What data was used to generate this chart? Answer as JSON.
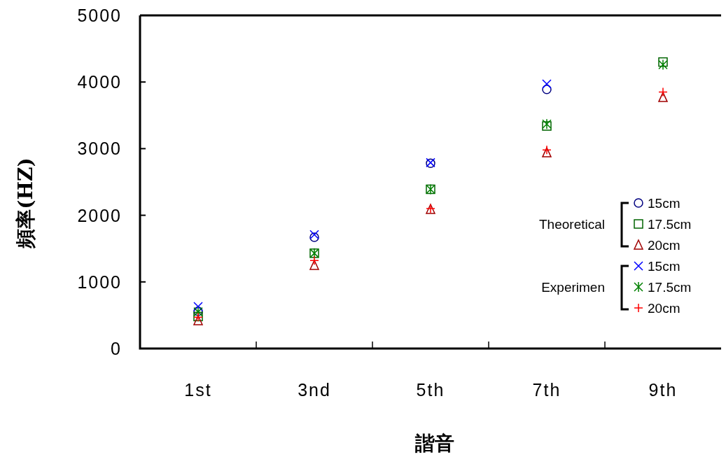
{
  "chart_data": {
    "type": "scatter",
    "xlabel": "諧音",
    "ylabel": "頻率(HZ)",
    "categories": [
      "1st",
      "3nd",
      "5th",
      "7th",
      "9th"
    ],
    "ylim": [
      0,
      5000
    ],
    "yticks": [
      0,
      1000,
      2000,
      3000,
      4000,
      5000
    ],
    "grid": false,
    "legend": "right",
    "annotations": [
      "Theoretical",
      "Experimen"
    ],
    "series": [
      {
        "name": "15cm",
        "color": "#000080",
        "marker": "circle",
        "values": [
          560,
          1670,
          2780,
          3890,
          null
        ]
      },
      {
        "name": "17.5cm",
        "color": "#006400",
        "marker": "square",
        "values": [
          480,
          1430,
          2390,
          3340,
          4300
        ]
      },
      {
        "name": "20cm",
        "color": "#a00000",
        "marker": "triangle",
        "values": [
          420,
          1250,
          2090,
          2940,
          3770
        ]
      },
      {
        "name": "15cm",
        "color": "#0000ff",
        "marker": "x",
        "values": [
          630,
          1710,
          2790,
          3970,
          null
        ]
      },
      {
        "name": "17.5cm",
        "color": "#008000",
        "marker": "cross",
        "values": [
          550,
          1430,
          2390,
          3370,
          4260
        ]
      },
      {
        "name": "20cm",
        "color": "#ff0000",
        "marker": "plus",
        "values": [
          470,
          1320,
          2100,
          2980,
          3850
        ]
      }
    ]
  }
}
